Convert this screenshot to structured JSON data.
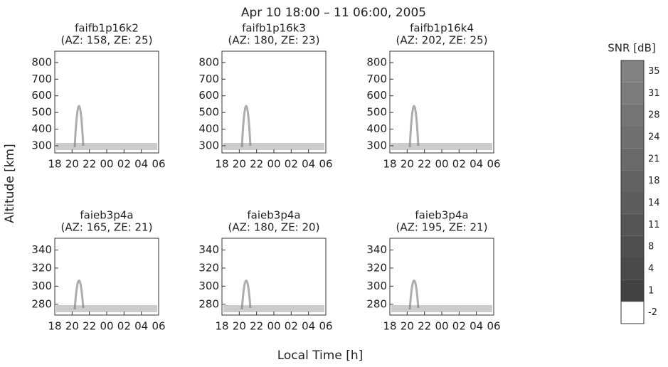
{
  "figure": {
    "title": "Apr 10 18:00 – 11 06:00, 2005",
    "xlabel": "Local Time [h]",
    "ylabel": "Altitude [km]"
  },
  "chart_data": [
    {
      "type": "image",
      "title": "faifb1p16k2",
      "subtitle": "(AZ: 158, ZE: 25)",
      "xlim": [
        18,
        30
      ],
      "xticks": [
        18,
        20,
        22,
        {
          "value": 24,
          "label": "00"
        },
        {
          "value": 26,
          "label": "02"
        },
        {
          "value": 28,
          "label": "04"
        },
        {
          "value": 30,
          "label": "06"
        }
      ],
      "ylim": [
        257,
        868
      ],
      "yticks": [
        300,
        400,
        500,
        600,
        700,
        800
      ]
    },
    {
      "type": "image",
      "title": "faifb1p16k3",
      "subtitle": "(AZ: 180, ZE: 23)",
      "xlim": [
        18,
        30
      ],
      "xticks": [
        18,
        20,
        22,
        {
          "value": 24,
          "label": "00"
        },
        {
          "value": 26,
          "label": "02"
        },
        {
          "value": 28,
          "label": "04"
        },
        {
          "value": 30,
          "label": "06"
        }
      ],
      "ylim": [
        257,
        868
      ],
      "yticks": [
        300,
        400,
        500,
        600,
        700,
        800
      ]
    },
    {
      "type": "image",
      "title": "faifb1p16k4",
      "subtitle": "(AZ: 202, ZE: 25)",
      "xlim": [
        18,
        30
      ],
      "xticks": [
        18,
        20,
        22,
        {
          "value": 24,
          "label": "00"
        },
        {
          "value": 26,
          "label": "02"
        },
        {
          "value": 28,
          "label": "04"
        },
        {
          "value": 30,
          "label": "06"
        }
      ],
      "ylim": [
        257,
        868
      ],
      "yticks": [
        300,
        400,
        500,
        600,
        700,
        800
      ]
    },
    {
      "type": "image",
      "title": "faieb3p4a",
      "subtitle": "(AZ: 165, ZE: 21)",
      "xlim": [
        18,
        30
      ],
      "xticks": [
        18,
        20,
        22,
        {
          "value": 24,
          "label": "00"
        },
        {
          "value": 26,
          "label": "02"
        },
        {
          "value": 28,
          "label": "04"
        },
        {
          "value": 30,
          "label": "06"
        }
      ],
      "ylim": [
        268,
        353
      ],
      "yticks": [
        280,
        300,
        320,
        340
      ]
    },
    {
      "type": "image",
      "title": "faieb3p4a",
      "subtitle": "(AZ: 180, ZE: 20)",
      "xlim": [
        18,
        30
      ],
      "xticks": [
        18,
        20,
        22,
        {
          "value": 24,
          "label": "00"
        },
        {
          "value": 26,
          "label": "02"
        },
        {
          "value": 28,
          "label": "04"
        },
        {
          "value": 30,
          "label": "06"
        }
      ],
      "ylim": [
        268,
        353
      ],
      "yticks": [
        280,
        300,
        320,
        340
      ]
    },
    {
      "type": "image",
      "title": "faieb3p4a",
      "subtitle": "(AZ: 195, ZE: 21)",
      "xlim": [
        18,
        30
      ],
      "xticks": [
        18,
        20,
        22,
        {
          "value": 24,
          "label": "00"
        },
        {
          "value": 26,
          "label": "02"
        },
        {
          "value": 28,
          "label": "04"
        },
        {
          "value": 30,
          "label": "06"
        }
      ],
      "ylim": [
        268,
        353
      ],
      "yticks": [
        280,
        300,
        320,
        340
      ]
    }
  ],
  "colorbar": {
    "label": "SNR [dB]",
    "ticks": [
      -2,
      1,
      4,
      8,
      11,
      14,
      18,
      21,
      24,
      28,
      31,
      35
    ]
  }
}
